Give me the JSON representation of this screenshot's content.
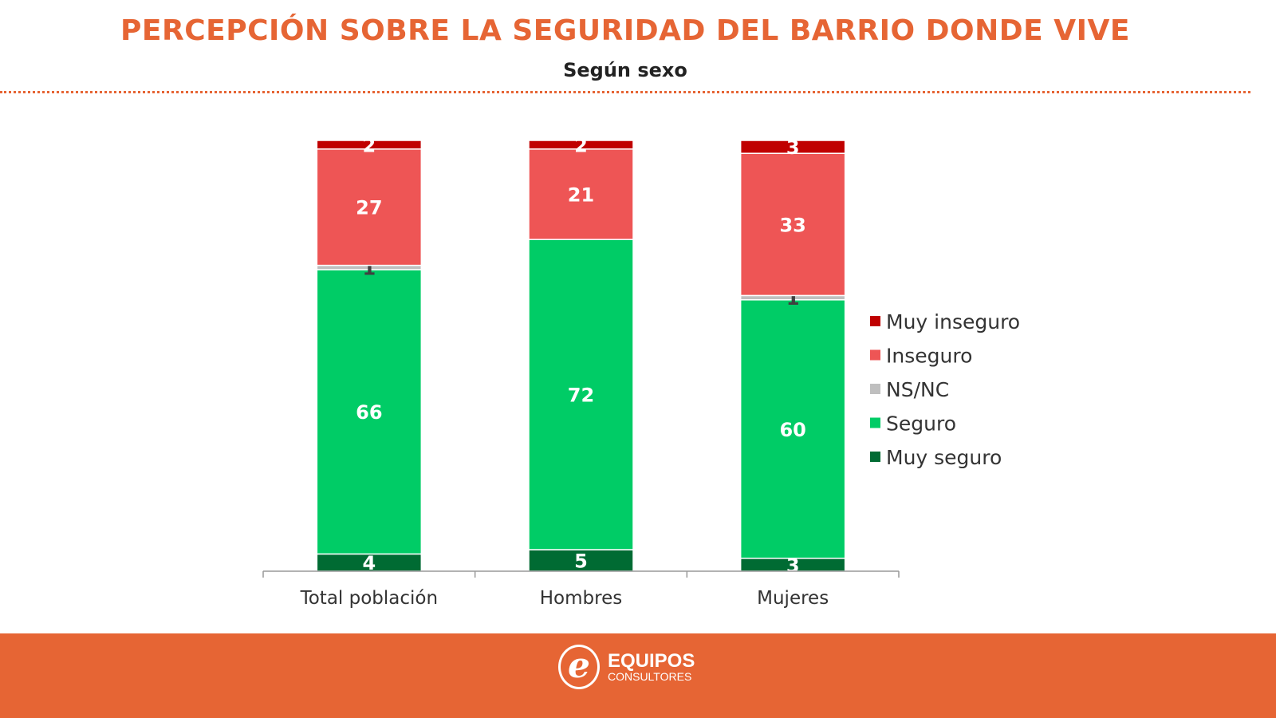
{
  "header": {
    "title": "PERCEPCIÓN SOBRE LA SEGURIDAD DEL BARRIO DONDE VIVE",
    "subtitle": "Según sexo"
  },
  "footer": {
    "logo_line1": "EQUIPOS",
    "logo_line2": "CONSULTORES"
  },
  "chart_data": {
    "type": "bar",
    "stacked": true,
    "categories": [
      "Total población",
      "Hombres",
      "Mujeres"
    ],
    "series": [
      {
        "name": "Muy seguro",
        "color": "#006B33",
        "values": [
          4,
          5,
          3
        ]
      },
      {
        "name": "Seguro",
        "color": "#00CC66",
        "values": [
          66,
          72,
          60
        ]
      },
      {
        "name": "NS/NC",
        "color": "#BFBFBF",
        "values": [
          1,
          0,
          1
        ]
      },
      {
        "name": "Inseguro",
        "color": "#EE5555",
        "values": [
          27,
          21,
          33
        ]
      },
      {
        "name": "Muy inseguro",
        "color": "#C00000",
        "values": [
          2,
          2,
          3
        ]
      }
    ],
    "ylim": [
      0,
      100
    ],
    "grid": false,
    "legend": "right"
  }
}
